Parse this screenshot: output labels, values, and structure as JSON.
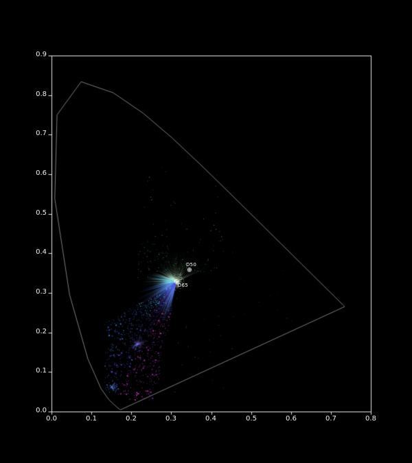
{
  "chart_data": {
    "type": "scatter",
    "title": "",
    "xlabel": "",
    "ylabel": "",
    "xlim": [
      0.0,
      0.8
    ],
    "ylim": [
      0.0,
      0.9
    ],
    "grid": false,
    "background_color": "#000000",
    "axis_color": "#e8e8e8",
    "tick_label_color": "#f2f2f2",
    "x_ticks": [
      0.0,
      0.1,
      0.2,
      0.3,
      0.4,
      0.5,
      0.6,
      0.7,
      0.8
    ],
    "x_tick_labels": [
      "0.0",
      "0.1",
      "0.2",
      "0.3",
      "0.4",
      "0.5",
      "0.6",
      "0.7",
      "0.8"
    ],
    "y_ticks": [
      0.0,
      0.1,
      0.2,
      0.3,
      0.4,
      0.5,
      0.6,
      0.7,
      0.8,
      0.9
    ],
    "y_tick_labels": [
      "0.0",
      "0.1",
      "0.2",
      "0.3",
      "0.4",
      "0.5",
      "0.6",
      "0.7",
      "0.8",
      "0.9"
    ],
    "spectral_locus": {
      "color": "#8c8c8c",
      "points": [
        [
          0.1741,
          0.005
        ],
        [
          0.1738,
          0.0049
        ],
        [
          0.1733,
          0.0048
        ],
        [
          0.1726,
          0.0048
        ],
        [
          0.1714,
          0.0051
        ],
        [
          0.1689,
          0.0069
        ],
        [
          0.1644,
          0.0109
        ],
        [
          0.1566,
          0.0177
        ],
        [
          0.144,
          0.0297
        ],
        [
          0.1241,
          0.0578
        ],
        [
          0.0913,
          0.1327
        ],
        [
          0.0454,
          0.295
        ],
        [
          0.0082,
          0.5384
        ],
        [
          0.0139,
          0.7502
        ],
        [
          0.0743,
          0.8338
        ],
        [
          0.1547,
          0.8059
        ],
        [
          0.2296,
          0.7543
        ],
        [
          0.3016,
          0.6923
        ],
        [
          0.3731,
          0.6245
        ],
        [
          0.4441,
          0.5547
        ],
        [
          0.5125,
          0.4866
        ],
        [
          0.5752,
          0.4242
        ],
        [
          0.627,
          0.3725
        ],
        [
          0.6658,
          0.334
        ],
        [
          0.6915,
          0.3083
        ],
        [
          0.7079,
          0.292
        ],
        [
          0.719,
          0.2809
        ],
        [
          0.726,
          0.274
        ],
        [
          0.73,
          0.27
        ],
        [
          0.732,
          0.268
        ],
        [
          0.7334,
          0.2666
        ],
        [
          0.7344,
          0.2656
        ],
        [
          0.7347,
          0.2653
        ]
      ]
    },
    "annotations": [
      {
        "label": "D50",
        "x": 0.3457,
        "y": 0.3585,
        "marker": "circle-plus",
        "color": "#ffffff",
        "label_side": "above"
      },
      {
        "label": "D65",
        "x": 0.3127,
        "y": 0.329,
        "marker": "circle-plus",
        "color": "#ffffff",
        "label_side": "below"
      }
    ],
    "scatter": {
      "seed": 42,
      "center": {
        "x": 0.3127,
        "y": 0.329
      },
      "core": {
        "count": 240,
        "sigma": 6.5,
        "colors": [
          "#e8f0e0",
          "#ffffff",
          "#cfe8d0",
          "#b8e0c8"
        ],
        "alpha": [
          0.2,
          0.75
        ]
      },
      "ray_groups": [
        {
          "name": "blue-bundle",
          "angle_deg": [
            102,
            168
          ],
          "count": 300,
          "len": [
            12,
            68
          ],
          "len_pow": 1.3,
          "colors": [
            "#4a72e8",
            "#5a9ae8",
            "#3a5ae0",
            "#6ab8e8"
          ],
          "alpha": [
            0.2,
            0.6
          ],
          "dotted": false
        },
        {
          "name": "cyan-left",
          "angle_deg": [
            168,
            200
          ],
          "count": 110,
          "len": [
            8,
            52
          ],
          "len_pow": 1.3,
          "colors": [
            "#7fd8e0",
            "#9fe8e0",
            "#5ac0e8"
          ],
          "alpha": [
            0.25,
            0.7
          ],
          "dotted": false
        },
        {
          "name": "teal-upleft",
          "angle_deg": [
            200,
            240
          ],
          "count": 80,
          "len": [
            6,
            38
          ],
          "len_pow": 1.3,
          "colors": [
            "#7fd8b8",
            "#b0e8c8",
            "#d8f0d8"
          ],
          "alpha": [
            0.2,
            0.6
          ],
          "dotted": false
        },
        {
          "name": "speckle-up",
          "angle_deg": [
            240,
            335
          ],
          "count": 170,
          "len": [
            5,
            58
          ],
          "len_pow": 1.6,
          "colors": [
            "#9fc89f",
            "#cfe0c0",
            "#7fb08f"
          ],
          "alpha": [
            0.12,
            0.4
          ],
          "dotted": true
        },
        {
          "name": "short-right",
          "angle_deg": [
            335,
            462
          ],
          "count": 130,
          "len": [
            2,
            13
          ],
          "len_pow": 1.6,
          "colors": [
            "#cfd8c8",
            "#a8c0a8"
          ],
          "alpha": [
            0.15,
            0.45
          ],
          "dotted": false
        },
        {
          "name": "fan-streaks",
          "angle_deg": [
            102,
            150
          ],
          "count": 70,
          "len": [
            40,
            155
          ],
          "len_pow": 1.1,
          "colors": [
            "#4a5ae0",
            "#6a4ad0",
            "#9a35c0",
            "#4a72e8"
          ],
          "alpha": [
            0.1,
            0.3
          ],
          "dotted": true
        }
      ],
      "fan": {
        "count": 850,
        "angle_deg": [
          100,
          150
        ],
        "radius": [
          10,
          185
        ],
        "radius_pow": 0.62,
        "clip": {
          "min_x": 0.132,
          "min_y": 0.028
        },
        "colors_right": [
          "#b535c0",
          "#c040b0",
          "#8a35c8"
        ],
        "colors_mid": [
          "#4a5ae0",
          "#6a4ad0",
          "#7a3ac8"
        ],
        "colors_left": [
          "#4a72e8",
          "#5a8af0",
          "#3a5ae0"
        ],
        "colors_cyan": [
          "#5ac0e8",
          "#6ad0f0"
        ],
        "alpha": [
          0.35,
          0.95
        ]
      },
      "sparse": [
        {
          "name": "green-above",
          "count": 80,
          "box": [
            0.225,
            0.355,
            0.43,
            0.625
          ],
          "ypow": 2.0,
          "colors": [
            "#2f9f4f",
            "#55d077",
            "#1f7f3f",
            "#3fbf5f"
          ],
          "alpha": [
            0.3,
            0.9
          ]
        },
        {
          "name": "red-right",
          "count": 26,
          "box": [
            0.33,
            0.23,
            0.67,
            0.41
          ],
          "ypow": 1,
          "colors": [
            "#8a2020",
            "#c03535",
            "#6a1818"
          ],
          "alpha": [
            0.35,
            0.8
          ]
        },
        {
          "name": "magenta-right",
          "count": 18,
          "box": [
            0.3,
            0.05,
            0.46,
            0.31
          ],
          "ypow": 1,
          "colors": [
            "#b535c0",
            "#8a35c8"
          ],
          "alpha": [
            0.4,
            0.85
          ]
        },
        {
          "name": "teal-halo",
          "count": 50,
          "box": [
            0.215,
            0.335,
            0.3,
            0.425
          ],
          "ypow": 1,
          "colors": [
            "#58c8a8",
            "#88d8c0",
            "#3fae8f"
          ],
          "alpha": [
            0.2,
            0.55
          ]
        }
      ],
      "secondary_bursts": [
        {
          "x": 0.215,
          "y": 0.17,
          "ray_count": 40,
          "len": [
            3,
            16
          ],
          "dot_count": 26,
          "sigma": 5,
          "colors": [
            "#4a72e8",
            "#6a4ad0",
            "#5ac0e8",
            "#b535c0"
          ],
          "alpha": [
            0.3,
            0.85
          ]
        },
        {
          "x": 0.152,
          "y": 0.062,
          "ray_count": 14,
          "len": [
            2,
            7
          ],
          "dot_count": 46,
          "sigma": 4.2,
          "colors": [
            "#4a6af0",
            "#5ac0e8",
            "#3a52d8",
            "#6a9af8"
          ],
          "alpha": [
            0.45,
            1.0
          ]
        }
      ]
    }
  }
}
